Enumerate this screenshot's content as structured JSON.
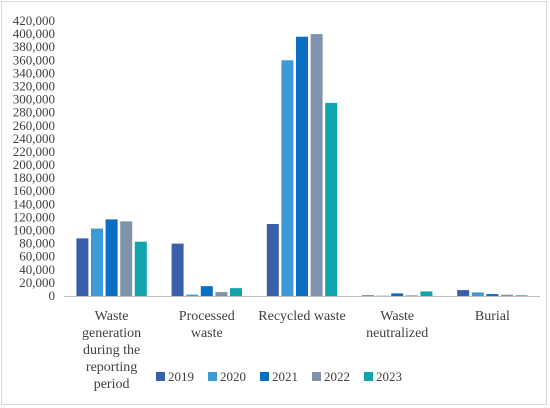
{
  "chart_data": {
    "type": "bar",
    "title": "",
    "xlabel": "",
    "ylabel": "",
    "ylim": [
      0,
      420000
    ],
    "ytick_step": 20000,
    "grid": false,
    "legend_position": "bottom-right",
    "categories": [
      "Waste generation during the reporting period",
      "Processed waste",
      "Recycled waste",
      "Waste neutralized",
      "Burial"
    ],
    "category_label_lines": [
      [
        "Waste",
        "generation",
        "during the",
        "reporting",
        "period"
      ],
      [
        "Processed",
        "waste"
      ],
      [
        "Recycled waste"
      ],
      [
        "Waste",
        "neutralized"
      ],
      [
        "Burial"
      ]
    ],
    "series": [
      {
        "name": "2019",
        "color": "#3a5ea8",
        "values": [
          88000,
          80000,
          110000,
          1000,
          9000
        ]
      },
      {
        "name": "2020",
        "color": "#3d9ad6",
        "values": [
          103000,
          2000,
          360000,
          500,
          5500
        ]
      },
      {
        "name": "2021",
        "color": "#0a6fc4",
        "values": [
          117000,
          15000,
          396000,
          4000,
          3000
        ]
      },
      {
        "name": "2022",
        "color": "#7f93ad",
        "values": [
          114000,
          6000,
          400000,
          1000,
          2000
        ]
      },
      {
        "name": "2023",
        "color": "#10a5ad",
        "values": [
          83000,
          12000,
          295000,
          7000,
          1000
        ]
      }
    ]
  }
}
